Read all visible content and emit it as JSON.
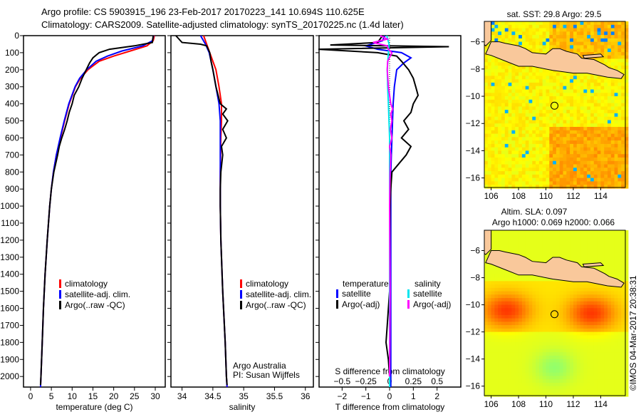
{
  "title_line1": "Argo profile: CS 5903915_196 23-Feb-2017 20170223_141 10.694S 110.625E",
  "title_line2": "Climatology: CARS2009. Satellite-adjusted climatology: synTS_20170225.nc (1.4d later)",
  "credit": "©IMOS 04-Mar-2017 20:38:31",
  "colors": {
    "climatology": "#ff0000",
    "satellite": "#0000ff",
    "argo": "#000000",
    "sal_satellite": "#00e5ee",
    "sal_argo": "#ff00ff",
    "land": "#f9c89b"
  },
  "chart_data": [
    {
      "type": "line",
      "id": "temperature",
      "xlabel": "temperature (deg C)",
      "xlim": [
        -1.7,
        32.4
      ],
      "ylim": [
        0,
        2062
      ],
      "xticks": [
        0,
        5,
        10,
        15,
        20,
        25,
        30
      ],
      "yticks": [
        0,
        100,
        200,
        300,
        400,
        500,
        600,
        700,
        800,
        900,
        1000,
        1100,
        1200,
        1300,
        1400,
        1500,
        1600,
        1700,
        1800,
        1900,
        2000
      ],
      "legend": [
        "climatology",
        "satellite-adj. clim.",
        "Argo(..raw -QC)"
      ],
      "series": [
        {
          "name": "climatology",
          "color": "#ff0000",
          "depth": [
            0,
            30,
            60,
            90,
            120,
            150,
            200,
            250,
            300,
            400,
            500,
            600,
            700,
            800,
            900,
            1000,
            1200,
            1400,
            1600,
            1800,
            2000,
            2062
          ],
          "values": [
            29.8,
            29.5,
            28,
            24,
            20,
            16.5,
            13.8,
            12,
            10.8,
            9.3,
            8.2,
            7.2,
            6.2,
            5.5,
            5.0,
            4.6,
            4.0,
            3.5,
            3.1,
            2.8,
            2.5,
            2.4
          ]
        },
        {
          "name": "satellite-adj. clim.",
          "color": "#0000ff",
          "depth": [
            0,
            30,
            60,
            90,
            120,
            150,
            200,
            250,
            300,
            400,
            500,
            600,
            700,
            800,
            900,
            1000,
            1200,
            1400,
            1600,
            1800,
            2000,
            2062
          ],
          "values": [
            29.6,
            29.3,
            27,
            22,
            18.5,
            15.8,
            13.5,
            11.8,
            10.7,
            9.2,
            8.1,
            7.1,
            6.2,
            5.5,
            5.0,
            4.6,
            4.0,
            3.5,
            3.1,
            2.8,
            2.5,
            2.4
          ]
        },
        {
          "name": "Argo(..raw -QC)",
          "color": "#000000",
          "depth": [
            0,
            40,
            60,
            80,
            100,
            130,
            160,
            200,
            250,
            300,
            350,
            400,
            450,
            500,
            550,
            600,
            650,
            700,
            800,
            900,
            1000,
            1200,
            1400,
            1600,
            1800,
            2000,
            2050
          ],
          "values": [
            29.5,
            29.3,
            25,
            19,
            16.5,
            15,
            14.2,
            13.4,
            12.4,
            11.6,
            10.5,
            10,
            9.3,
            8.8,
            8.2,
            7.5,
            6.9,
            6.5,
            5.6,
            5.0,
            4.6,
            4.0,
            3.5,
            3.1,
            2.8,
            2.5,
            2.4
          ]
        }
      ]
    },
    {
      "type": "line",
      "id": "salinity",
      "xlabel": "salinity",
      "xlim": [
        33.82,
        36.13
      ],
      "ylim": [
        0,
        2062
      ],
      "xticks": [
        34,
        34.5,
        35,
        35.5,
        36
      ],
      "legend": [
        "climatology",
        "satellite-adj. clim.",
        "Argo(..raw -QC)"
      ],
      "annotation": [
        "Argo Australia",
        "PI: Susan Wijffels"
      ],
      "series": [
        {
          "name": "climatology",
          "color": "#ff0000",
          "depth": [
            0,
            50,
            100,
            200,
            300,
            400,
            500,
            600,
            800,
            1000,
            1200,
            1500,
            1800,
            2000,
            2062
          ],
          "values": [
            34.35,
            34.4,
            34.45,
            34.55,
            34.6,
            34.64,
            34.64,
            34.63,
            34.62,
            34.62,
            34.63,
            34.66,
            34.7,
            34.72,
            34.73
          ]
        },
        {
          "name": "satellite-adj. clim.",
          "color": "#0000ff",
          "depth": [
            0,
            50,
            100,
            200,
            300,
            400,
            500,
            600,
            800,
            1000,
            1200,
            1500,
            1800,
            2000,
            2062
          ],
          "values": [
            34.3,
            34.38,
            34.44,
            34.5,
            34.55,
            34.6,
            34.62,
            34.62,
            34.62,
            34.62,
            34.63,
            34.66,
            34.7,
            34.72,
            34.73
          ]
        },
        {
          "name": "Argo(..raw -QC)",
          "color": "#000000",
          "depth": [
            0,
            40,
            50,
            60,
            100,
            150,
            200,
            300,
            400,
            430,
            460,
            500,
            550,
            600,
            650,
            700,
            800,
            900,
            1000,
            1200,
            1500,
            1800,
            2000,
            2050
          ],
          "values": [
            33.9,
            34.0,
            34.3,
            34.4,
            34.45,
            34.47,
            34.5,
            34.55,
            34.62,
            34.72,
            34.66,
            34.74,
            34.66,
            34.72,
            34.64,
            34.66,
            34.63,
            34.62,
            34.62,
            34.63,
            34.66,
            34.7,
            34.72,
            34.73
          ]
        }
      ]
    },
    {
      "type": "line",
      "id": "difference",
      "xlabel": "T difference from climatology",
      "xlabel2": "S difference from climatology",
      "xlim": [
        -2.97,
        3.0
      ],
      "ylim": [
        0,
        2062
      ],
      "xticks": [
        -2,
        -1,
        0,
        1,
        2
      ],
      "xticks2": [
        -0.5,
        -0.25,
        0,
        0.25,
        0.5
      ],
      "legend_temperature_title": "temperature",
      "legend_salinity_title": "salinity",
      "legend": [
        "satellite",
        "Argo(-adj)",
        "satellite",
        "Argo(-adj)"
      ],
      "series": [
        {
          "name": "T satellite",
          "color": "#0000ff",
          "depth": [
            0,
            30,
            60,
            80,
            100,
            130,
            160,
            200,
            300,
            400,
            600,
            800,
            1000,
            1500,
            2000,
            2062
          ],
          "values": [
            -0.2,
            -0.3,
            -1,
            -0.5,
            0.5,
            0.9,
            0.6,
            0.3,
            0.2,
            0.15,
            0.1,
            0.05,
            0.05,
            0.05,
            0.05,
            0.05
          ]
        },
        {
          "name": "T Argo(-adj)",
          "color": "#000000",
          "depth": [
            0,
            40,
            55,
            65,
            80,
            100,
            120,
            150,
            200,
            250,
            300,
            350,
            400,
            450,
            500,
            550,
            600,
            650,
            700,
            750,
            800,
            900,
            1000,
            1500,
            1700,
            1800,
            1900,
            2000
          ],
          "values": [
            -0.3,
            -0.5,
            -2.5,
            2.5,
            -3,
            -0.5,
            0.3,
            0.5,
            0.8,
            1.0,
            1.1,
            1.2,
            1.0,
            0.9,
            0.6,
            0.8,
            0.5,
            0.9,
            0.7,
            0.4,
            0.1,
            0.05,
            0.02,
            0.0,
            -0.1,
            -0.15,
            -0.05,
            0.0
          ]
        },
        {
          "name": "S satellite",
          "color": "#00e5ee",
          "depth": [
            0,
            50,
            100,
            200,
            300,
            400,
            600,
            800,
            1000,
            1500,
            2000,
            2062
          ],
          "values": [
            -0.12,
            -0.02,
            -0.05,
            -0.1,
            -0.08,
            -0.05,
            0.0,
            0.0,
            0.0,
            0.0,
            0.0,
            0.0
          ]
        },
        {
          "name": "S Argo(-adj)",
          "color": "#ff00ff",
          "depth": [
            0,
            20,
            40,
            60,
            80,
            100,
            150,
            200,
            300,
            400,
            430,
            460,
            500,
            550,
            600,
            650,
            700,
            800,
            1000,
            1500,
            2000
          ],
          "values": [
            -0.4,
            -0.1,
            -0.7,
            -0.1,
            -0.05,
            0.1,
            -0.08,
            -0.1,
            -0.05,
            0.05,
            0.13,
            0.05,
            0.1,
            0.03,
            0.1,
            0.0,
            0.05,
            0.02,
            0.0,
            0.02,
            0.0
          ]
        }
      ]
    },
    {
      "type": "heatmap",
      "id": "sst-map",
      "title": "sat. SST: 29.8  Argo: 29.5",
      "xlim": [
        105.5,
        115.8
      ],
      "ylim": [
        -16.7,
        -4.5
      ],
      "xticks": [
        106,
        108,
        110,
        112,
        114
      ],
      "yticks": [
        -6,
        -8,
        -10,
        -12,
        -14,
        -16
      ],
      "argo_position": [
        110.625,
        -10.694
      ]
    },
    {
      "type": "heatmap",
      "id": "sla-map",
      "title": "Altim. SLA: 0.097",
      "subtitle": "Argo h1000: 0.069 h2000: 0.066",
      "xlim": [
        105.5,
        115.8
      ],
      "ylim": [
        -16.7,
        -4.5
      ],
      "xticks": [
        106,
        108,
        110,
        112,
        114
      ],
      "yticks": [
        -6,
        -8,
        -10,
        -12,
        -14,
        -16
      ],
      "argo_position": [
        110.625,
        -10.694
      ]
    }
  ]
}
